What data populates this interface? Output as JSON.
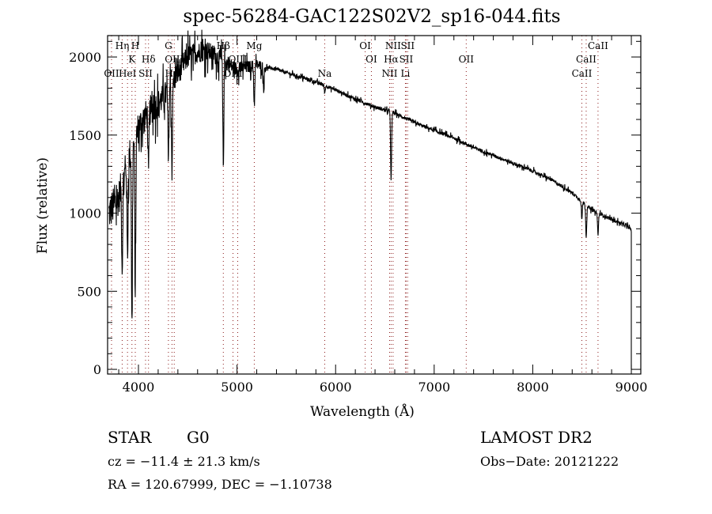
{
  "chart_data": {
    "type": "line",
    "title": "spec-56284-GAC122S02V2_sp16-044.fits",
    "xlabel": "Wavelength (Å)",
    "ylabel": "Flux (relative)",
    "xlim": [
      3687,
      9096
    ],
    "ylim": [
      -30,
      2137
    ],
    "x_ticks": [
      4000,
      5000,
      6000,
      7000,
      8000,
      9000
    ],
    "y_ticks": [
      0,
      500,
      1000,
      1500,
      2000
    ],
    "grid": false,
    "series": [
      {
        "name": "spectrum",
        "continuum_x": [
          3700,
          3800,
          3900,
          4000,
          4100,
          4200,
          4300,
          4400,
          4500,
          4600,
          4700,
          4800,
          4900,
          5000,
          5200,
          5400,
          5600,
          5800,
          6000,
          6200,
          6400,
          6600,
          6800,
          7000,
          7200,
          7400,
          7600,
          7800,
          8000,
          8200,
          8400,
          8600,
          8800,
          8950,
          8990
        ],
        "continuum_y": [
          1000,
          1100,
          1350,
          1550,
          1650,
          1700,
          1780,
          1900,
          2000,
          2030,
          2040,
          2000,
          1960,
          1920,
          1950,
          1920,
          1880,
          1840,
          1790,
          1730,
          1680,
          1640,
          1580,
          1530,
          1480,
          1420,
          1370,
          1320,
          1270,
          1210,
          1130,
          1020,
          960,
          920,
          900
        ],
        "noise_blue": 160,
        "noise_red": 18,
        "absorption_lines": [
          {
            "x": 3835,
            "min": 650
          },
          {
            "x": 3889,
            "min": 700
          },
          {
            "x": 3934,
            "min": 260
          },
          {
            "x": 3968,
            "min": 480
          },
          {
            "x": 4102,
            "min": 1240
          },
          {
            "x": 4304,
            "min": 1320
          },
          {
            "x": 4340,
            "min": 1280
          },
          {
            "x": 4861,
            "min": 1300
          },
          {
            "x": 5175,
            "min": 1680
          },
          {
            "x": 5270,
            "min": 1800
          },
          {
            "x": 5890,
            "min": 1770
          },
          {
            "x": 6563,
            "min": 1200
          },
          {
            "x": 8498,
            "min": 960
          },
          {
            "x": 8542,
            "min": 850
          },
          {
            "x": 8662,
            "min": 860
          }
        ],
        "end_x": 9000
      }
    ],
    "line_markers": [
      3727,
      3835,
      3889,
      3934,
      3968,
      4072,
      4102,
      4304,
      4340,
      4363,
      4861,
      4959,
      5007,
      5175,
      5890,
      6300,
      6363,
      6548,
      6563,
      6583,
      6708,
      6716,
      6731,
      7325,
      8498,
      8542,
      8662
    ],
    "line_labels": [
      {
        "text": "Hη",
        "x": 3835,
        "row": 1
      },
      {
        "text": "H",
        "x": 3968,
        "row": 1
      },
      {
        "text": "G",
        "x": 4304,
        "row": 1
      },
      {
        "text": "Hβ",
        "x": 4861,
        "row": 1
      },
      {
        "text": "Mg",
        "x": 5175,
        "row": 1
      },
      {
        "text": "OI",
        "x": 6300,
        "row": 1
      },
      {
        "text": "NII",
        "x": 6583,
        "row": 1
      },
      {
        "text": "SII",
        "x": 6731,
        "row": 1
      },
      {
        "text": "CaII",
        "x": 8662,
        "row": 1
      },
      {
        "text": "K",
        "x": 3934,
        "row": 2
      },
      {
        "text": "Hδ",
        "x": 4102,
        "row": 2
      },
      {
        "text": "OIII",
        "x": 4363,
        "row": 2
      },
      {
        "text": "OIII",
        "x": 5007,
        "row": 2
      },
      {
        "text": "OI",
        "x": 6363,
        "row": 2
      },
      {
        "text": "Hα",
        "x": 6563,
        "row": 2
      },
      {
        "text": "SII",
        "x": 6716,
        "row": 2
      },
      {
        "text": "OII",
        "x": 7325,
        "row": 2
      },
      {
        "text": "CaII",
        "x": 8542,
        "row": 2
      },
      {
        "text": "OII",
        "x": 3727,
        "row": 3
      },
      {
        "text": "HeI",
        "x": 3889,
        "row": 3
      },
      {
        "text": "SII",
        "x": 4072,
        "row": 3
      },
      {
        "text": "Hγ",
        "x": 4340,
        "row": 3
      },
      {
        "text": "OIII",
        "x": 4959,
        "row": 3
      },
      {
        "text": "Na",
        "x": 5890,
        "row": 3
      },
      {
        "text": "NII",
        "x": 6548,
        "row": 3
      },
      {
        "text": "Li",
        "x": 6708,
        "row": 3
      },
      {
        "text": "CaII",
        "x": 8498,
        "row": 3
      }
    ],
    "marker_color": "#8b1a1a"
  },
  "info": {
    "class": "STAR",
    "subclass": "G0",
    "survey": "LAMOST DR2",
    "cz": "cz = −11.4 ± 21.3 km/s",
    "obs_date": "Obs−Date: 20121222",
    "coords": "RA = 120.67999, DEC =  −1.10738"
  }
}
